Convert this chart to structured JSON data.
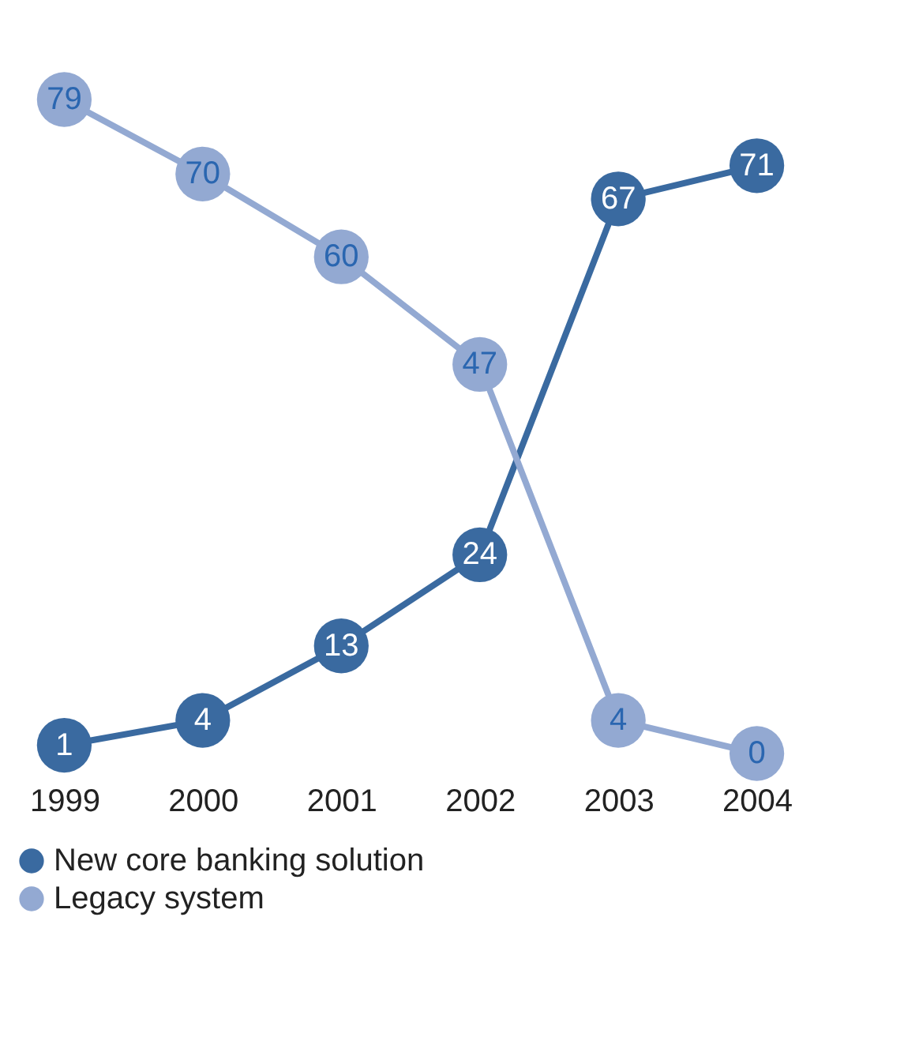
{
  "chart_data": {
    "type": "line",
    "categories": [
      "1999",
      "2000",
      "2001",
      "2002",
      "2003",
      "2004"
    ],
    "series": [
      {
        "name": "New core banking solution",
        "color": "#3a6aa0",
        "values": [
          1,
          4,
          13,
          24,
          67,
          71
        ]
      },
      {
        "name": "Legacy system",
        "color": "#93a9d2",
        "values": [
          79,
          70,
          60,
          47,
          4,
          0
        ]
      }
    ],
    "data_labels": true,
    "marker": "circle",
    "line_style": "solid",
    "legend": "bottom",
    "grid": false
  }
}
